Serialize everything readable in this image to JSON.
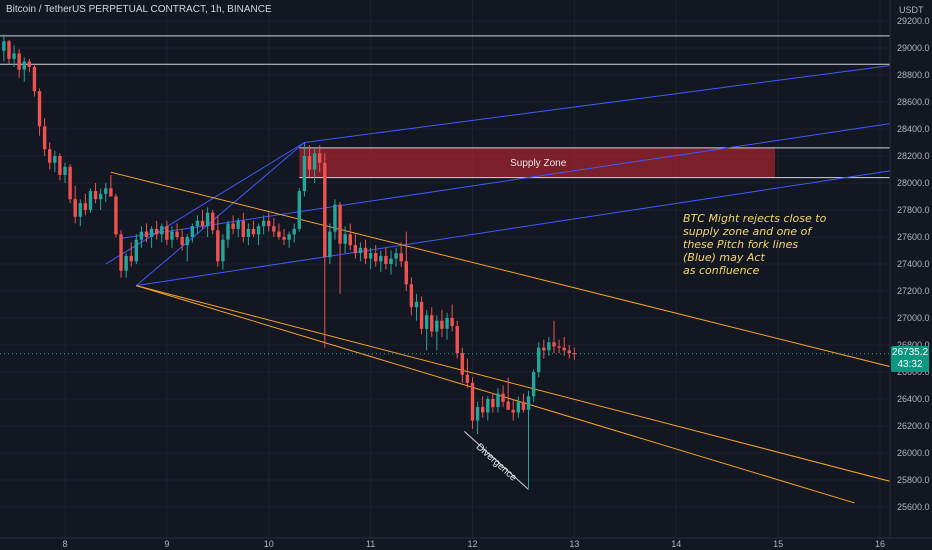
{
  "header": {
    "title": "Bitcoin / TetherUS PERPETUAL CONTRACT, 1h, BINANCE",
    "unit": "USDT"
  },
  "price_tag": {
    "price": "26735.2",
    "countdown": "43:32",
    "color": "#089981"
  },
  "colors": {
    "background": "#131722",
    "up": "#26a69a",
    "down": "#ef5350",
    "pitchfork_blue": "#3d5afe",
    "channel_orange": "#f7a325",
    "supply_zone": "#a8242f",
    "annotation": "#f5d76e"
  },
  "chart_data": {
    "type": "candlestick",
    "symbol": "Bitcoin / TetherUS PERPETUAL CONTRACT",
    "timeframe": "1h",
    "exchange": "BINANCE",
    "y_axis": {
      "ticks": [
        "29200.0",
        "29000.0",
        "28800.0",
        "28600.0",
        "28400.0",
        "28200.0",
        "28000.0",
        "27800.0",
        "27600.0",
        "27400.0",
        "27200.0",
        "27000.0",
        "26800.0",
        "26600.0",
        "26400.0",
        "26200.0",
        "26000.0",
        "25800.0",
        "25600.0"
      ],
      "range": [
        25550,
        29300
      ]
    },
    "x_axis": {
      "ticks": [
        "8",
        "9",
        "10",
        "11",
        "12",
        "13",
        "14",
        "15",
        "16"
      ],
      "day_range": [
        7.4,
        16.1
      ]
    },
    "last_price": 26735.2,
    "horizontal_lines": [
      29090,
      28880
    ],
    "supply_zone": {
      "label": "Supply Zone",
      "top": 28260,
      "bottom": 28040,
      "from_day": 10.3,
      "to_day": 14.97
    },
    "pitchfork": {
      "pivots": [
        {
          "day": 8.4,
          "price": 27400
        },
        {
          "day": 10.35,
          "price": 28300
        },
        {
          "day": 8.7,
          "price": 27240
        }
      ],
      "lines": [
        {
          "from": {
            "day": 10.35,
            "price": 28300
          },
          "to": {
            "day": 16.1,
            "price": 28870
          }
        },
        {
          "from": {
            "day": 8.55,
            "price": 27590
          },
          "to": {
            "day": 16.1,
            "price": 28440
          }
        },
        {
          "from": {
            "day": 8.7,
            "price": 27240
          },
          "to": {
            "day": 16.1,
            "price": 28090
          }
        }
      ]
    },
    "channel": [
      {
        "from": {
          "day": 8.45,
          "price": 28080
        },
        "to": {
          "day": 16.1,
          "price": 26640
        }
      },
      {
        "from": {
          "day": 8.7,
          "price": 27240
        },
        "to": {
          "day": 16.1,
          "price": 25790
        }
      },
      {
        "from": {
          "day": 8.7,
          "price": 27240
        },
        "to": {
          "day": 15.75,
          "price": 25630
        }
      }
    ],
    "divergence": {
      "label": "Divergence",
      "from": {
        "day": 11.92,
        "price": 26160
      },
      "to": {
        "day": 12.55,
        "price": 25730
      }
    },
    "annotation": [
      "BTC  Might rejects close to",
      "supply zone and one of",
      "these Pitch fork lines",
      "(Blue) may Act",
      " as confluence"
    ],
    "candles": [
      {
        "d": 7.4,
        "o": 28980,
        "h": 29100,
        "l": 28900,
        "c": 29050
      },
      {
        "d": 7.45,
        "o": 29050,
        "h": 29060,
        "l": 28880,
        "c": 28920
      },
      {
        "d": 7.5,
        "o": 28920,
        "h": 29020,
        "l": 28860,
        "c": 28960
      },
      {
        "d": 7.55,
        "o": 28960,
        "h": 28990,
        "l": 28780,
        "c": 28840
      },
      {
        "d": 7.6,
        "o": 28840,
        "h": 28930,
        "l": 28750,
        "c": 28900
      },
      {
        "d": 7.65,
        "o": 28900,
        "h": 28920,
        "l": 28820,
        "c": 28860
      },
      {
        "d": 7.7,
        "o": 28860,
        "h": 28880,
        "l": 28640,
        "c": 28680
      },
      {
        "d": 7.75,
        "o": 28680,
        "h": 28700,
        "l": 28350,
        "c": 28420
      },
      {
        "d": 7.8,
        "o": 28420,
        "h": 28480,
        "l": 28200,
        "c": 28250
      },
      {
        "d": 7.85,
        "o": 28250,
        "h": 28300,
        "l": 28100,
        "c": 28150
      },
      {
        "d": 7.9,
        "o": 28150,
        "h": 28240,
        "l": 28080,
        "c": 28200
      },
      {
        "d": 7.95,
        "o": 28200,
        "h": 28220,
        "l": 28020,
        "c": 28060
      },
      {
        "d": 8.0,
        "o": 28060,
        "h": 28150,
        "l": 28000,
        "c": 28120
      },
      {
        "d": 8.05,
        "o": 28120,
        "h": 28140,
        "l": 27850,
        "c": 27880
      },
      {
        "d": 8.1,
        "o": 27880,
        "h": 27980,
        "l": 27700,
        "c": 27750
      },
      {
        "d": 8.15,
        "o": 27750,
        "h": 27880,
        "l": 27680,
        "c": 27850
      },
      {
        "d": 8.2,
        "o": 27850,
        "h": 27920,
        "l": 27760,
        "c": 27800
      },
      {
        "d": 8.25,
        "o": 27800,
        "h": 27960,
        "l": 27780,
        "c": 27940
      },
      {
        "d": 8.3,
        "o": 27940,
        "h": 28000,
        "l": 27850,
        "c": 27880
      },
      {
        "d": 8.35,
        "o": 27880,
        "h": 27960,
        "l": 27800,
        "c": 27920
      },
      {
        "d": 8.4,
        "o": 27920,
        "h": 28000,
        "l": 27860,
        "c": 27960
      },
      {
        "d": 8.45,
        "o": 27960,
        "h": 28060,
        "l": 27900,
        "c": 27900
      },
      {
        "d": 8.5,
        "o": 27900,
        "h": 27920,
        "l": 27600,
        "c": 27620
      },
      {
        "d": 8.55,
        "o": 27620,
        "h": 27650,
        "l": 27300,
        "c": 27350
      },
      {
        "d": 8.6,
        "o": 27350,
        "h": 27480,
        "l": 27300,
        "c": 27460
      },
      {
        "d": 8.65,
        "o": 27460,
        "h": 27560,
        "l": 27380,
        "c": 27420
      },
      {
        "d": 8.7,
        "o": 27420,
        "h": 27620,
        "l": 27400,
        "c": 27580
      },
      {
        "d": 8.75,
        "o": 27580,
        "h": 27680,
        "l": 27520,
        "c": 27640
      },
      {
        "d": 8.8,
        "o": 27640,
        "h": 27700,
        "l": 27560,
        "c": 27600
      },
      {
        "d": 8.85,
        "o": 27600,
        "h": 27680,
        "l": 27520,
        "c": 27660
      },
      {
        "d": 8.9,
        "o": 27660,
        "h": 27720,
        "l": 27580,
        "c": 27620
      },
      {
        "d": 8.95,
        "o": 27620,
        "h": 27700,
        "l": 27560,
        "c": 27680
      },
      {
        "d": 9.0,
        "o": 27680,
        "h": 27720,
        "l": 27540,
        "c": 27580
      },
      {
        "d": 9.05,
        "o": 27580,
        "h": 27680,
        "l": 27520,
        "c": 27640
      },
      {
        "d": 9.1,
        "o": 27640,
        "h": 27700,
        "l": 27580,
        "c": 27600
      },
      {
        "d": 9.15,
        "o": 27600,
        "h": 27660,
        "l": 27500,
        "c": 27540
      },
      {
        "d": 9.2,
        "o": 27540,
        "h": 27620,
        "l": 27420,
        "c": 27600
      },
      {
        "d": 9.25,
        "o": 27600,
        "h": 27700,
        "l": 27560,
        "c": 27680
      },
      {
        "d": 9.3,
        "o": 27680,
        "h": 27760,
        "l": 27620,
        "c": 27720
      },
      {
        "d": 9.35,
        "o": 27720,
        "h": 27800,
        "l": 27660,
        "c": 27680
      },
      {
        "d": 9.4,
        "o": 27680,
        "h": 27820,
        "l": 27600,
        "c": 27780
      },
      {
        "d": 9.45,
        "o": 27780,
        "h": 27800,
        "l": 27620,
        "c": 27650
      },
      {
        "d": 9.5,
        "o": 27650,
        "h": 27760,
        "l": 27380,
        "c": 27420
      },
      {
        "d": 9.55,
        "o": 27420,
        "h": 27620,
        "l": 27360,
        "c": 27580
      },
      {
        "d": 9.6,
        "o": 27580,
        "h": 27720,
        "l": 27520,
        "c": 27700
      },
      {
        "d": 9.65,
        "o": 27700,
        "h": 27760,
        "l": 27620,
        "c": 27660
      },
      {
        "d": 9.7,
        "o": 27660,
        "h": 27740,
        "l": 27600,
        "c": 27720
      },
      {
        "d": 9.75,
        "o": 27720,
        "h": 27780,
        "l": 27560,
        "c": 27600
      },
      {
        "d": 9.8,
        "o": 27600,
        "h": 27700,
        "l": 27540,
        "c": 27660
      },
      {
        "d": 9.85,
        "o": 27660,
        "h": 27720,
        "l": 27600,
        "c": 27620
      },
      {
        "d": 9.9,
        "o": 27620,
        "h": 27700,
        "l": 27540,
        "c": 27680
      },
      {
        "d": 9.95,
        "o": 27680,
        "h": 27760,
        "l": 27620,
        "c": 27720
      },
      {
        "d": 10.0,
        "o": 27720,
        "h": 27780,
        "l": 27640,
        "c": 27680
      },
      {
        "d": 10.05,
        "o": 27680,
        "h": 27740,
        "l": 27600,
        "c": 27640
      },
      {
        "d": 10.1,
        "o": 27640,
        "h": 27700,
        "l": 27580,
        "c": 27600
      },
      {
        "d": 10.15,
        "o": 27600,
        "h": 27660,
        "l": 27540,
        "c": 27580
      },
      {
        "d": 10.2,
        "o": 27580,
        "h": 27640,
        "l": 27520,
        "c": 27620
      },
      {
        "d": 10.25,
        "o": 27620,
        "h": 27700,
        "l": 27560,
        "c": 27660
      },
      {
        "d": 10.3,
        "o": 27660,
        "h": 27960,
        "l": 27640,
        "c": 27940
      },
      {
        "d": 10.35,
        "o": 27940,
        "h": 28300,
        "l": 27900,
        "c": 28200
      },
      {
        "d": 10.4,
        "o": 28200,
        "h": 28280,
        "l": 28040,
        "c": 28100
      },
      {
        "d": 10.45,
        "o": 28100,
        "h": 28260,
        "l": 28000,
        "c": 28220
      },
      {
        "d": 10.5,
        "o": 28220,
        "h": 28280,
        "l": 28080,
        "c": 28150
      },
      {
        "d": 10.55,
        "o": 28150,
        "h": 28220,
        "l": 26780,
        "c": 27450
      },
      {
        "d": 10.6,
        "o": 27450,
        "h": 27700,
        "l": 27400,
        "c": 27640
      },
      {
        "d": 10.65,
        "o": 27640,
        "h": 27880,
        "l": 27580,
        "c": 27840
      },
      {
        "d": 10.7,
        "o": 27840,
        "h": 27860,
        "l": 27180,
        "c": 27550
      },
      {
        "d": 10.75,
        "o": 27550,
        "h": 27680,
        "l": 27480,
        "c": 27620
      },
      {
        "d": 10.8,
        "o": 27620,
        "h": 27700,
        "l": 27500,
        "c": 27540
      },
      {
        "d": 10.85,
        "o": 27540,
        "h": 27620,
        "l": 27440,
        "c": 27480
      },
      {
        "d": 10.9,
        "o": 27480,
        "h": 27560,
        "l": 27420,
        "c": 27520
      },
      {
        "d": 10.95,
        "o": 27520,
        "h": 27580,
        "l": 27400,
        "c": 27440
      },
      {
        "d": 11.0,
        "o": 27440,
        "h": 27520,
        "l": 27360,
        "c": 27480
      },
      {
        "d": 11.05,
        "o": 27480,
        "h": 27540,
        "l": 27380,
        "c": 27420
      },
      {
        "d": 11.1,
        "o": 27420,
        "h": 27500,
        "l": 27340,
        "c": 27460
      },
      {
        "d": 11.15,
        "o": 27460,
        "h": 27520,
        "l": 27360,
        "c": 27400
      },
      {
        "d": 11.2,
        "o": 27400,
        "h": 27500,
        "l": 27320,
        "c": 27440
      },
      {
        "d": 11.25,
        "o": 27440,
        "h": 27520,
        "l": 27380,
        "c": 27480
      },
      {
        "d": 11.3,
        "o": 27480,
        "h": 27560,
        "l": 27380,
        "c": 27420
      },
      {
        "d": 11.35,
        "o": 27420,
        "h": 27640,
        "l": 27200,
        "c": 27250
      },
      {
        "d": 11.4,
        "o": 27250,
        "h": 27300,
        "l": 27020,
        "c": 27080
      },
      {
        "d": 11.45,
        "o": 27080,
        "h": 27180,
        "l": 26980,
        "c": 27120
      },
      {
        "d": 11.5,
        "o": 27120,
        "h": 27160,
        "l": 26880,
        "c": 26920
      },
      {
        "d": 11.55,
        "o": 26920,
        "h": 27060,
        "l": 26760,
        "c": 27020
      },
      {
        "d": 11.6,
        "o": 27020,
        "h": 27080,
        "l": 26860,
        "c": 26900
      },
      {
        "d": 11.65,
        "o": 26900,
        "h": 27020,
        "l": 26760,
        "c": 26980
      },
      {
        "d": 11.7,
        "o": 26980,
        "h": 27060,
        "l": 26860,
        "c": 26920
      },
      {
        "d": 11.75,
        "o": 26920,
        "h": 27040,
        "l": 26840,
        "c": 27000
      },
      {
        "d": 11.8,
        "o": 27000,
        "h": 27100,
        "l": 26900,
        "c": 26940
      },
      {
        "d": 11.85,
        "o": 26940,
        "h": 26980,
        "l": 26700,
        "c": 26740
      },
      {
        "d": 11.9,
        "o": 26740,
        "h": 26780,
        "l": 26520,
        "c": 26580
      },
      {
        "d": 11.95,
        "o": 26580,
        "h": 26700,
        "l": 26480,
        "c": 26520
      },
      {
        "d": 12.0,
        "o": 26520,
        "h": 26560,
        "l": 26180,
        "c": 26240
      },
      {
        "d": 12.05,
        "o": 26240,
        "h": 26380,
        "l": 26140,
        "c": 26340
      },
      {
        "d": 12.1,
        "o": 26340,
        "h": 26420,
        "l": 26260,
        "c": 26300
      },
      {
        "d": 12.15,
        "o": 26300,
        "h": 26420,
        "l": 26240,
        "c": 26400
      },
      {
        "d": 12.2,
        "o": 26400,
        "h": 26440,
        "l": 26300,
        "c": 26340
      },
      {
        "d": 12.25,
        "o": 26340,
        "h": 26480,
        "l": 26300,
        "c": 26440
      },
      {
        "d": 12.3,
        "o": 26440,
        "h": 26500,
        "l": 26340,
        "c": 26380
      },
      {
        "d": 12.35,
        "o": 26380,
        "h": 26560,
        "l": 26340,
        "c": 26320
      },
      {
        "d": 12.4,
        "o": 26320,
        "h": 26400,
        "l": 26240,
        "c": 26300
      },
      {
        "d": 12.45,
        "o": 26300,
        "h": 26420,
        "l": 26260,
        "c": 26380
      },
      {
        "d": 12.5,
        "o": 26380,
        "h": 26440,
        "l": 26300,
        "c": 26320
      },
      {
        "d": 12.55,
        "o": 26320,
        "h": 26460,
        "l": 25740,
        "c": 26420
      },
      {
        "d": 12.6,
        "o": 26420,
        "h": 26620,
        "l": 26380,
        "c": 26600
      },
      {
        "d": 12.65,
        "o": 26600,
        "h": 26820,
        "l": 26560,
        "c": 26780
      },
      {
        "d": 12.7,
        "o": 26780,
        "h": 26840,
        "l": 26700,
        "c": 26760
      },
      {
        "d": 12.75,
        "o": 26760,
        "h": 26860,
        "l": 26720,
        "c": 26820
      },
      {
        "d": 12.8,
        "o": 26820,
        "h": 26980,
        "l": 26740,
        "c": 26790
      },
      {
        "d": 12.85,
        "o": 26790,
        "h": 26840,
        "l": 26740,
        "c": 26780
      },
      {
        "d": 12.9,
        "o": 26780,
        "h": 26860,
        "l": 26720,
        "c": 26760
      },
      {
        "d": 12.95,
        "o": 26760,
        "h": 26800,
        "l": 26700,
        "c": 26740
      },
      {
        "d": 13.0,
        "o": 26740,
        "h": 26780,
        "l": 26690,
        "c": 26735
      }
    ]
  }
}
